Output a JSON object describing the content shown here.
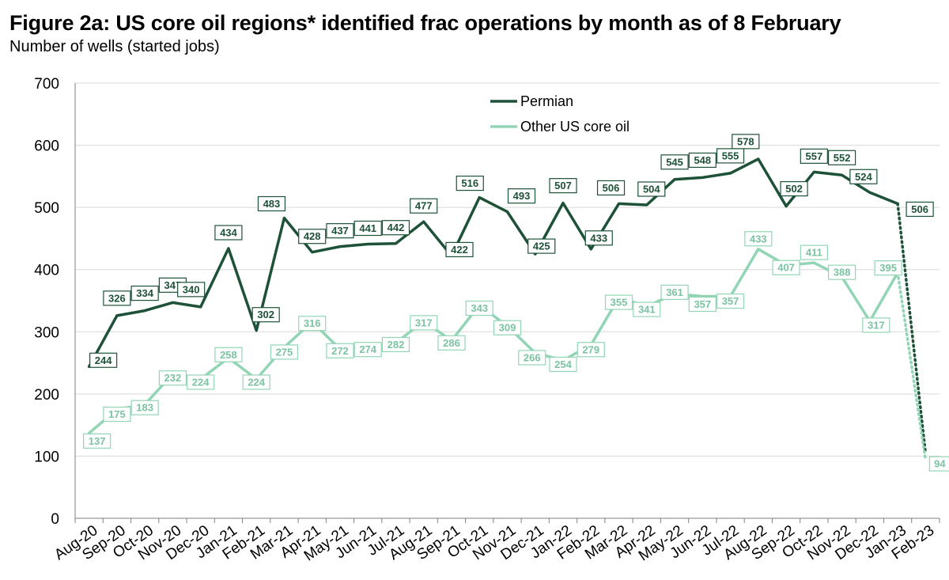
{
  "title": "Figure 2a: US core oil regions* identified frac operations by month as of 8 February",
  "subtitle": "Number of wells (started jobs)",
  "colors": {
    "permian": "#1e5238",
    "other": "#92d5b5",
    "grid": "#d9d9d9",
    "axis": "#7f7f7f"
  },
  "chart_data": {
    "type": "line",
    "title": "Figure 2a: US core oil regions* identified frac operations by month as of 8 February",
    "subtitle": "Number of wells (started jobs)",
    "ylim": [
      0,
      700
    ],
    "yticks": [
      0,
      100,
      200,
      300,
      400,
      500,
      600,
      700
    ],
    "grid": true,
    "legend_position": "top-center",
    "categories": [
      "Aug-20",
      "Sep-20",
      "Oct-20",
      "Nov-20",
      "Dec-20",
      "Jan-21",
      "Feb-21",
      "Mar-21",
      "Apr-21",
      "May-21",
      "Jun-21",
      "Jul-21",
      "Aug-21",
      "Sep-21",
      "Oct-21",
      "Nov-21",
      "Dec-21",
      "Jan-22",
      "Feb-22",
      "Mar-22",
      "Apr-22",
      "May-22",
      "Jun-22",
      "Jul-22",
      "Aug-22",
      "Sep-22",
      "Oct-22",
      "Nov-22",
      "Dec-22",
      "Jan-23",
      "Feb-23"
    ],
    "series": [
      {
        "name": "Permian",
        "values": [
          244,
          326,
          334,
          347,
          340,
          434,
          302,
          483,
          428,
          437,
          441,
          442,
          477,
          422,
          516,
          493,
          425,
          507,
          433,
          506,
          504,
          545,
          548,
          555,
          578,
          502,
          557,
          552,
          524,
          506,
          104
        ],
        "labels": [
          "244",
          "326",
          "334",
          "347",
          "340",
          "434",
          "302",
          "483",
          "428",
          "437",
          "441",
          "442",
          "477",
          "422",
          "516",
          "493",
          "425",
          "507",
          "433",
          "506",
          "504",
          "545",
          "548",
          "555",
          "578",
          "502",
          "557",
          "552",
          "524",
          "506",
          "104"
        ]
      },
      {
        "name": "Other US core oil",
        "values": [
          137,
          175,
          183,
          232,
          224,
          258,
          224,
          275,
          316,
          272,
          274,
          282,
          317,
          286,
          343,
          309,
          266,
          254,
          279,
          355,
          341,
          361,
          357,
          357,
          433,
          407,
          411,
          388,
          317,
          395,
          94
        ],
        "labels": [
          "137",
          "175",
          "183",
          "232",
          "224",
          "258",
          "224",
          "275",
          "316",
          "272",
          "274",
          "282",
          "317",
          "286",
          "343",
          "309",
          "266",
          "254",
          "279",
          "355",
          "341",
          "361",
          "357",
          "357",
          "433",
          "407",
          "411",
          "388",
          "317",
          "395",
          "94"
        ]
      }
    ]
  }
}
